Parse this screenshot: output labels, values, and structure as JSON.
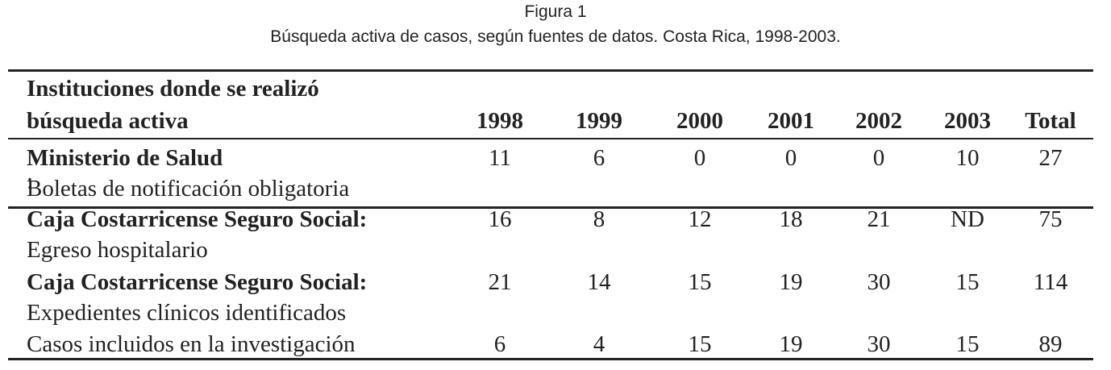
{
  "header": {
    "title": "Figura 1",
    "subtitle": "Búsqueda activa de casos, según fuentes de datos. Costa Rica, 1998-2003."
  },
  "table": {
    "label_header": [
      "Instituciones donde se realizó",
      "búsqueda activa"
    ],
    "columns": [
      "1998",
      "1999",
      "2000",
      "2001",
      "2002",
      "2003",
      "Total"
    ],
    "rows": [
      {
        "name": "Ministerio de Salud",
        "name_suffix": ":",
        "detail": "Boletas de notificación obligatoria",
        "values": [
          11,
          6,
          0,
          0,
          0,
          10,
          27
        ]
      },
      {
        "name": "Caja Costarricense Seguro Social:",
        "detail": "Egreso hospitalario",
        "values": [
          16,
          8,
          12,
          18,
          21,
          "ND",
          75
        ]
      },
      {
        "name": "Caja Costarricense Seguro Social:",
        "detail": "Expedientes clínicos identificados",
        "values": [
          21,
          14,
          15,
          19,
          30,
          15,
          114
        ]
      },
      {
        "label": "Casos incluidos en la investigación",
        "values": [
          6,
          4,
          15,
          19,
          30,
          15,
          89
        ]
      }
    ]
  }
}
